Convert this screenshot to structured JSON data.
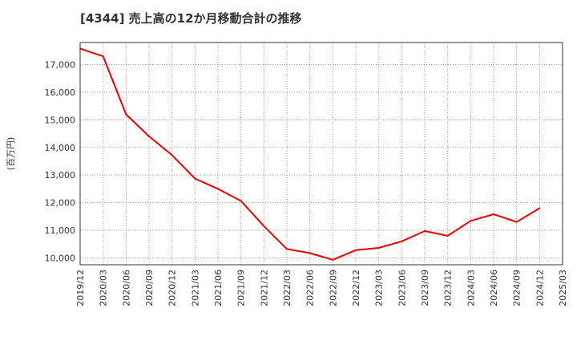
{
  "chart_data": {
    "type": "line",
    "title": "[4344]  売上高の12か月移動合計の推移",
    "xlabel": "",
    "ylabel": "(百万円)",
    "grid": true,
    "ylim": [
      9750,
      17800
    ],
    "yticks": [
      10000,
      11000,
      12000,
      13000,
      14000,
      15000,
      16000,
      17000
    ],
    "ytick_labels": [
      "10,000",
      "11,000",
      "12,000",
      "13,000",
      "14,000",
      "15,000",
      "16,000",
      "17,000"
    ],
    "xtick_labels": [
      "2019/12",
      "2020/03",
      "2020/06",
      "2020/09",
      "2020/12",
      "2021/03",
      "2021/06",
      "2021/09",
      "2021/12",
      "2022/03",
      "2022/06",
      "2022/09",
      "2022/12",
      "2023/03",
      "2023/06",
      "2023/09",
      "2023/12",
      "2024/03",
      "2024/06",
      "2024/09",
      "2024/12",
      "2025/03"
    ],
    "series": [
      {
        "name": "売上高の12か月移動合計",
        "color": "#e60000",
        "x": [
          "2019/12",
          "2020/03",
          "2020/06",
          "2020/09",
          "2020/12",
          "2021/03",
          "2021/06",
          "2021/09",
          "2021/12",
          "2022/03",
          "2022/06",
          "2022/09",
          "2022/12",
          "2023/03",
          "2023/06",
          "2023/09",
          "2023/12",
          "2024/03",
          "2024/06",
          "2024/09",
          "2024/12"
        ],
        "values": [
          17580,
          17300,
          15200,
          14400,
          13720,
          12870,
          12500,
          12060,
          11150,
          10320,
          10170,
          9930,
          10280,
          10360,
          10600,
          10970,
          10800,
          11340,
          11580,
          11300,
          11800
        ]
      }
    ]
  }
}
